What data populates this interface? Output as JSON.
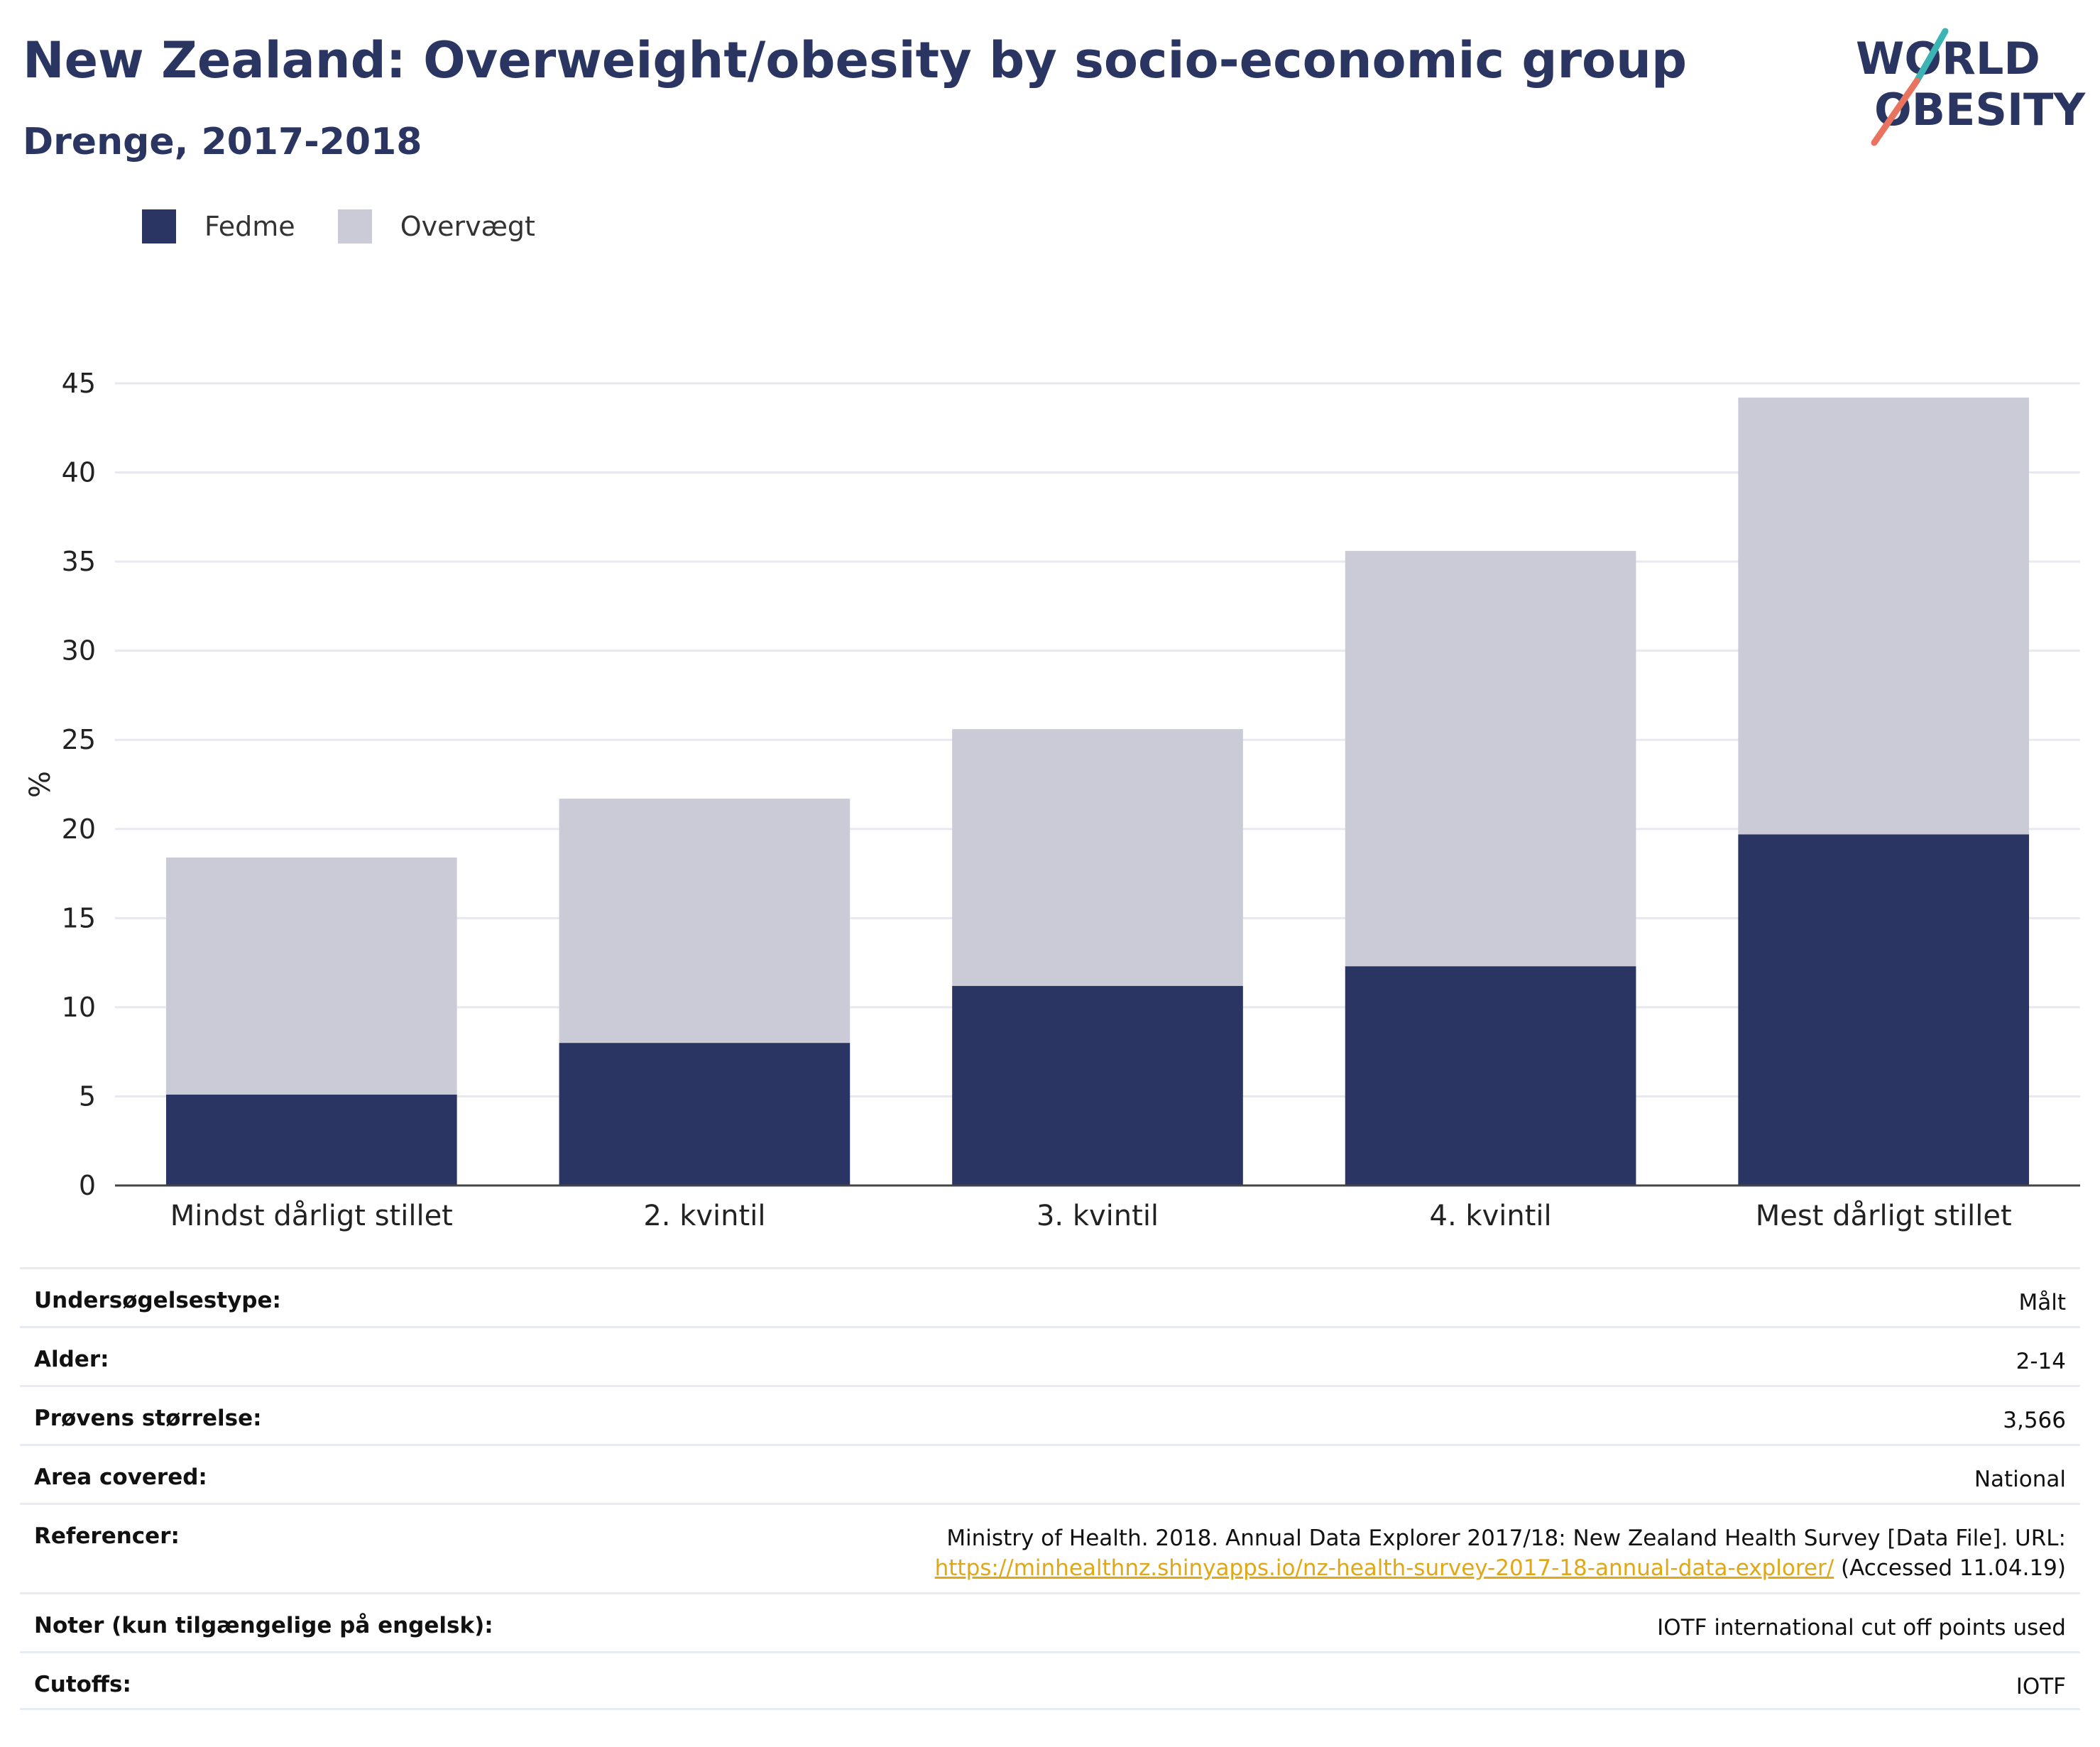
{
  "header": {
    "title": "New Zealand: Overweight/obesity by socio-economic group",
    "subtitle": "Drenge, 2017-2018"
  },
  "logo": {
    "line1": "WORLD",
    "line2": "OBESITY"
  },
  "colors": {
    "fedme": "#2a3563",
    "overvaegt": "#cacbd7",
    "title": "#2a3561",
    "link": "#e0a717",
    "logo_teal": "#3cb4b4",
    "logo_red": "#e8735f"
  },
  "legend": {
    "fedme": "Fedme",
    "overvaegt": "Overvægt"
  },
  "chart_data": {
    "type": "bar",
    "stacked": true,
    "categories": [
      "Mindst dårligt stillet",
      "2. kvintil",
      "3. kvintil",
      "4. kvintil",
      "Mest dårligt stillet"
    ],
    "series": [
      {
        "name": "Fedme",
        "values": [
          5.1,
          8.0,
          11.2,
          12.3,
          19.7
        ]
      },
      {
        "name": "Overvægt",
        "values": [
          13.3,
          13.7,
          14.4,
          23.3,
          24.5
        ]
      }
    ],
    "ylabel": "%",
    "ylim": [
      0,
      45
    ],
    "yticks": [
      0,
      5,
      10,
      15,
      20,
      25,
      30,
      35,
      40,
      45
    ],
    "grid": true,
    "legend_position": "top-left"
  },
  "meta": [
    {
      "label": "Undersøgelsestype:",
      "value": "Målt"
    },
    {
      "label": "Alder:",
      "value": "2-14"
    },
    {
      "label": "Prøvens størrelse:",
      "value": "3,566"
    },
    {
      "label": "Area covered:",
      "value": "National"
    },
    {
      "label": "Referencer:",
      "value": "Ministry of Health. 2018. Annual Data Explorer 2017/18: New Zealand Health Survey [Data File]. URL:",
      "link": "https://minhealthnz.shinyapps.io/nz-health-survey-2017-18-annual-data-explorer/",
      "suffix": " (Accessed 11.04.19)"
    },
    {
      "label": "Noter (kun tilgængelige på engelsk):",
      "value": "IOTF international cut off points used"
    },
    {
      "label": "Cutoffs:",
      "value": "IOTF"
    }
  ]
}
